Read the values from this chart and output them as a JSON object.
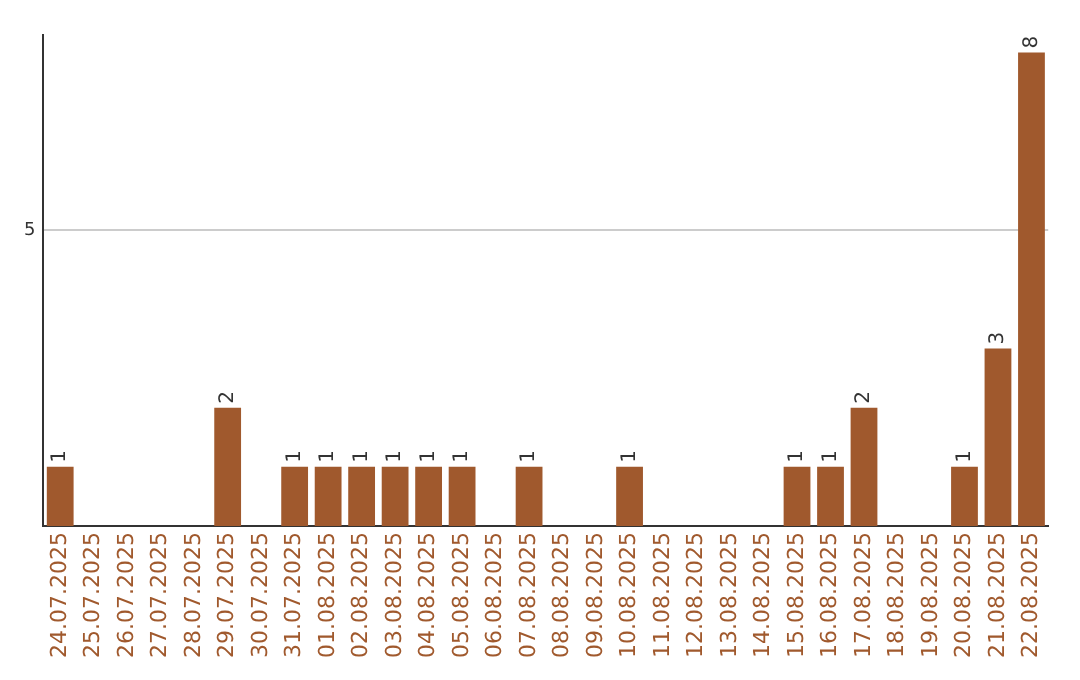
{
  "chart_data": {
    "type": "bar",
    "categories": [
      "24.07.2025",
      "25.07.2025",
      "26.07.2025",
      "27.07.2025",
      "28.07.2025",
      "29.07.2025",
      "30.07.2025",
      "31.07.2025",
      "01.08.2025",
      "02.08.2025",
      "03.08.2025",
      "04.08.2025",
      "05.08.2025",
      "06.08.2025",
      "07.08.2025",
      "08.08.2025",
      "09.08.2025",
      "10.08.2025",
      "11.08.2025",
      "12.08.2025",
      "13.08.2025",
      "14.08.2025",
      "15.08.2025",
      "16.08.2025",
      "17.08.2025",
      "18.08.2025",
      "19.08.2025",
      "20.08.2025",
      "21.08.2025",
      "22.08.2025"
    ],
    "values": [
      1,
      0,
      0,
      0,
      0,
      2,
      0,
      1,
      1,
      1,
      1,
      1,
      1,
      0,
      1,
      0,
      0,
      1,
      0,
      0,
      0,
      0,
      1,
      1,
      2,
      0,
      0,
      1,
      3,
      8
    ],
    "value_labels": [
      "1",
      null,
      null,
      null,
      null,
      "2",
      null,
      "1",
      "1",
      "1",
      "1",
      "1",
      "1",
      null,
      "1",
      null,
      null,
      "1",
      null,
      null,
      null,
      null,
      "1",
      "1",
      "2",
      null,
      null,
      "1",
      "3",
      "8"
    ],
    "color": "#a0592d",
    "ylim": [
      0,
      8.3
    ],
    "yticks": [
      5
    ],
    "grid": "y",
    "legend": false
  }
}
